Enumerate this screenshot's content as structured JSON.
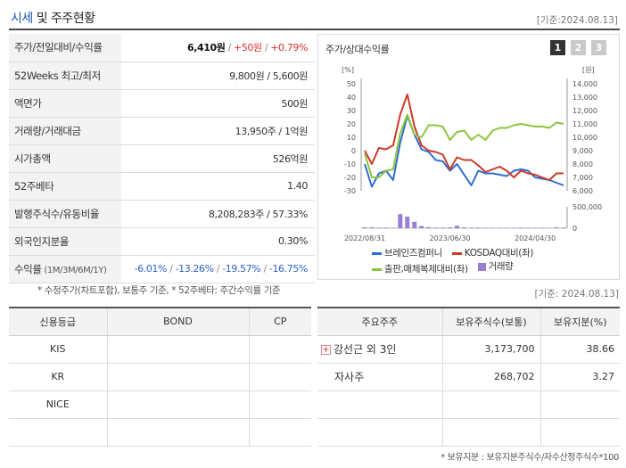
{
  "header": {
    "title_main": "시세",
    "title_rest": " 및 주주현황",
    "date": "[기준:2024.08.13]"
  },
  "info": [
    {
      "key": "주가/전일대비/수익률",
      "price": "6,410원",
      "sep1": " / ",
      "change": "+50원",
      "sep2": " / ",
      "pct": "+0.79%"
    },
    {
      "key": "52Weeks 최고/최저",
      "value": "9,800원 / 5,600원"
    },
    {
      "key": "액면가",
      "value": "500원"
    },
    {
      "key": "거래량/거래대금",
      "value": "13,950주 / 1억원"
    },
    {
      "key": "시가총액",
      "value": "526억원"
    },
    {
      "key": "52주베타",
      "value": "1.40"
    },
    {
      "key": "발행주식수/유동비율",
      "value": "8,208,283주 / 57.33%"
    },
    {
      "key": "외국인지분율",
      "value": "0.30%"
    },
    {
      "key": "수익률",
      "key_sub": " (1M/3M/6M/1Y)",
      "r1": "-6.01%",
      "r2": "-13.26%",
      "r3": "-19.57%",
      "r4": "-16.75%",
      "sep": "/ "
    }
  ],
  "left_note": "* 수정주가(차트포함), 보통주 기준, * 52주베타: 주간수익률 기준",
  "chart_panel": {
    "title": "주가/상대수익률",
    "pages": [
      "1",
      "2",
      "3"
    ]
  },
  "chart_data": {
    "type": "line",
    "x_ticks": [
      "2022/08/31",
      "2023/06/30",
      "2024/04/30"
    ],
    "left_axis": {
      "unit": "[%]",
      "ticks": [
        50,
        40,
        30,
        20,
        10,
        0,
        -10,
        -20,
        -30
      ],
      "ylim": [
        -30,
        50
      ]
    },
    "right_axis": {
      "unit": "[원]",
      "ticks": [
        "14,000",
        "13,000",
        "12,000",
        "11,000",
        "10,000",
        "9,000",
        "8,000",
        "7,000",
        "6,000"
      ],
      "ylim": [
        6000,
        14000
      ]
    },
    "volume_axis": {
      "ticks": [
        "500,000",
        "0"
      ],
      "ylim": [
        0,
        500000
      ]
    },
    "series": [
      {
        "name": "브레인즈컴퍼니",
        "color": "#2e6dd3",
        "axis": "right",
        "values": [
          8000,
          6300,
          7300,
          7500,
          6800,
          9600,
          11600,
          10200,
          9100,
          8900,
          8300,
          8200,
          7500,
          8000,
          7200,
          6400,
          7500,
          7300,
          7300,
          7200,
          7100,
          7500,
          7600,
          7500,
          7000,
          6900,
          6800,
          6600,
          6400
        ]
      },
      {
        "name": "KOSDAQ대비(좌)",
        "color": "#cc3a2a",
        "axis": "left",
        "values": [
          0,
          -10,
          2,
          1,
          4,
          27,
          42,
          18,
          4,
          0,
          -1,
          -3,
          -14,
          -5,
          -7,
          -7,
          -11,
          -16,
          -14,
          -12,
          -15,
          -20,
          -15,
          -17,
          -18,
          -20,
          -22,
          -17,
          -17
        ]
      },
      {
        "name": "출판,매체복제대비(좌)",
        "color": "#8cc63f",
        "axis": "left",
        "values": [
          -2,
          -20,
          -20,
          -15,
          -14,
          13,
          27,
          12,
          10,
          19,
          19,
          18,
          8,
          14,
          15,
          8,
          12,
          8,
          15,
          17,
          17,
          19,
          20,
          19,
          18,
          18,
          17,
          21,
          20
        ]
      },
      {
        "name": "거래량",
        "color": "#9b7dd4",
        "axis": "volume",
        "type": "bar",
        "values": [
          20000,
          20000,
          15000,
          15000,
          10000,
          330000,
          270000,
          150000,
          50000,
          25000,
          15000,
          15000,
          20000,
          55000,
          20000,
          15000,
          15000,
          12000,
          12000,
          10000,
          12000,
          10000,
          15000,
          12000,
          12000,
          12000,
          10000,
          20000,
          15000
        ]
      }
    ]
  },
  "date_right": "[기준: 2024.08.13]",
  "credit": {
    "headers": [
      "신용등급",
      "BOND",
      "CP"
    ],
    "rows": [
      {
        "agency": "KIS",
        "bond": "",
        "cp": ""
      },
      {
        "agency": "KR",
        "bond": "",
        "cp": ""
      },
      {
        "agency": "NICE",
        "bond": "",
        "cp": ""
      },
      {
        "agency": "",
        "bond": "",
        "cp": ""
      }
    ]
  },
  "holders": {
    "headers": [
      "주요주주",
      "보유주식수(보통)",
      "보유지분(%)"
    ],
    "rows": [
      {
        "name": "강선근 외 3인",
        "shares": "3,173,700",
        "pct": "38.66",
        "expand": "+"
      },
      {
        "name": "자사주",
        "shares": "268,702",
        "pct": "3.27"
      },
      {
        "name": "",
        "shares": "",
        "pct": ""
      },
      {
        "name": "",
        "shares": "",
        "pct": ""
      }
    ]
  },
  "right_note": "* 보유지분 : 보유지분주식수/자수산정주식수*100"
}
